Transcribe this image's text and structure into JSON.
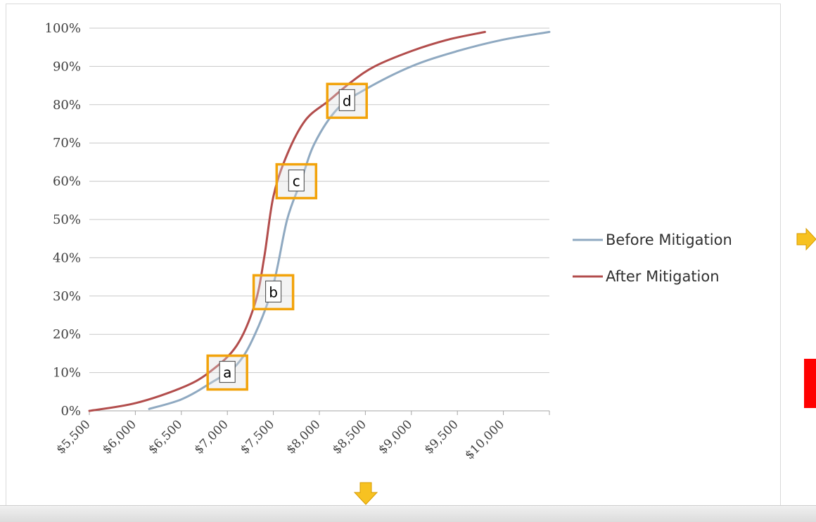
{
  "chart_data": {
    "type": "line",
    "title": "",
    "xlabel": "",
    "ylabel": "",
    "x_ticks": [
      "$5,500",
      "$6,000",
      "$6,500",
      "$7,000",
      "$7,500",
      "$8,000",
      "$8,500",
      "$9,000",
      "$9,500",
      "$10,000"
    ],
    "y_ticks": [
      "0%",
      "10%",
      "20%",
      "30%",
      "40%",
      "50%",
      "60%",
      "70%",
      "80%",
      "90%",
      "100%"
    ],
    "xlim": [
      5500,
      10500
    ],
    "ylim": [
      0,
      100
    ],
    "grid": "horizontal",
    "legend_position": "right",
    "series": [
      {
        "name": "Before Mitigation",
        "color": "#8fa9c1",
        "points": [
          [
            6150,
            0.5
          ],
          [
            6500,
            3
          ],
          [
            6800,
            7
          ],
          [
            7100,
            12
          ],
          [
            7300,
            20
          ],
          [
            7500,
            33
          ],
          [
            7650,
            50
          ],
          [
            7800,
            60
          ],
          [
            7950,
            70
          ],
          [
            8200,
            79
          ],
          [
            8500,
            84
          ],
          [
            9000,
            90
          ],
          [
            9500,
            94
          ],
          [
            10000,
            97
          ],
          [
            10500,
            99
          ]
        ]
      },
      {
        "name": "After Mitigation",
        "color": "#b24d4c",
        "points": [
          [
            5500,
            0
          ],
          [
            6000,
            2
          ],
          [
            6500,
            6
          ],
          [
            6800,
            10
          ],
          [
            7100,
            17
          ],
          [
            7300,
            28
          ],
          [
            7400,
            40
          ],
          [
            7500,
            56
          ],
          [
            7650,
            67
          ],
          [
            7850,
            76
          ],
          [
            8100,
            81
          ],
          [
            8350,
            86
          ],
          [
            8600,
            90
          ],
          [
            9000,
            94
          ],
          [
            9400,
            97
          ],
          [
            9800,
            99
          ]
        ]
      }
    ],
    "annotations": [
      {
        "label": "a",
        "x": 7000,
        "y": 10
      },
      {
        "label": "b",
        "x": 7500,
        "y": 31
      },
      {
        "label": "c",
        "x": 7750,
        "y": 60
      },
      {
        "label": "d",
        "x": 8300,
        "y": 81
      }
    ]
  },
  "colors": {
    "box_border": "#f2a30b",
    "grid": "#c8c8c8",
    "arrow": "#f7c221",
    "red_block": "#ff0000"
  }
}
